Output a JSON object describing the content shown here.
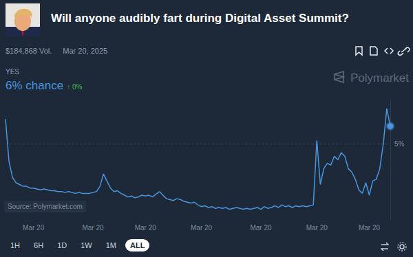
{
  "page": {
    "volume": "$184,868 Vol.",
    "date": "Mar 20, 2025",
    "outcome": "YES",
    "chance": "6% chance",
    "change": "↑ 0%",
    "brand": "Polymarket",
    "source": "Source: Polymarket.com",
    "ranges": [
      "1H",
      "6H",
      "1D",
      "1W",
      "1M",
      "ALL"
    ],
    "active": "ALL"
  },
  "chart_data": {
    "type": "line",
    "title": "Will anyone audibly fart during Digital Asset Summit?",
    "categories": [
      null,
      null,
      null,
      null,
      null,
      null,
      null,
      null,
      "Mar 20",
      null,
      null,
      null,
      null,
      null,
      null,
      null,
      null,
      null,
      null,
      null,
      null,
      null,
      null,
      null,
      null,
      "Mar 20",
      null,
      null,
      null,
      null,
      null,
      null,
      null,
      null,
      null,
      null,
      null,
      null,
      null,
      null,
      "Mar 20",
      null,
      null,
      null,
      null,
      null,
      null,
      null,
      null,
      null,
      null,
      null,
      null,
      null,
      null,
      null,
      "Mar 20",
      null,
      null,
      null,
      null,
      null,
      null,
      null,
      null,
      null,
      null,
      null,
      null,
      null,
      null,
      null,
      null,
      "Mar 20",
      null,
      null,
      null,
      null,
      null,
      null,
      null,
      null,
      null,
      null,
      null,
      null,
      null,
      null,
      null,
      "Mar 20",
      null,
      null,
      null,
      null,
      null,
      null,
      null,
      null,
      null,
      null,
      null,
      null,
      null,
      null,
      "Mar 20",
      null,
      null,
      null,
      null,
      null,
      null
    ],
    "values": [
      6.4,
      4.0,
      3.1,
      2.8,
      2.7,
      2.6,
      2.6,
      2.5,
      2.5,
      2.45,
      2.4,
      2.45,
      2.4,
      2.35,
      2.35,
      2.3,
      2.3,
      2.25,
      2.3,
      2.25,
      2.2,
      2.25,
      2.2,
      2.2,
      2.2,
      2.25,
      2.3,
      2.6,
      3.3,
      2.9,
      2.5,
      2.3,
      2.35,
      2.2,
      2.1,
      2.0,
      2.05,
      1.95,
      2.0,
      2.1,
      2.05,
      2.1,
      2.0,
      2.15,
      2.3,
      2.1,
      1.9,
      1.85,
      1.8,
      1.9,
      1.85,
      1.75,
      1.7,
      1.65,
      1.7,
      1.55,
      1.45,
      1.5,
      1.4,
      1.45,
      1.35,
      1.4,
      1.35,
      1.4,
      1.3,
      1.35,
      1.4,
      1.35,
      1.3,
      1.35,
      1.3,
      1.35,
      1.4,
      1.3,
      1.45,
      1.35,
      1.4,
      1.5,
      1.4,
      1.55,
      1.45,
      1.5,
      1.4,
      1.5,
      1.45,
      1.5,
      1.45,
      1.5,
      1.55,
      5.2,
      2.7,
      3.6,
      3.9,
      3.8,
      4.3,
      4.1,
      4.5,
      4.3,
      3.6,
      3.4,
      3.0,
      2.4,
      2.2,
      2.8,
      2.1,
      2.9,
      3.0,
      3.6,
      5.0,
      7.0,
      6.0
    ],
    "color": "#4a95de",
    "ylim": [
      0.7,
      7.5
    ],
    "yticks": [
      {
        "value": 5,
        "label": "5%"
      }
    ],
    "grid": true
  }
}
